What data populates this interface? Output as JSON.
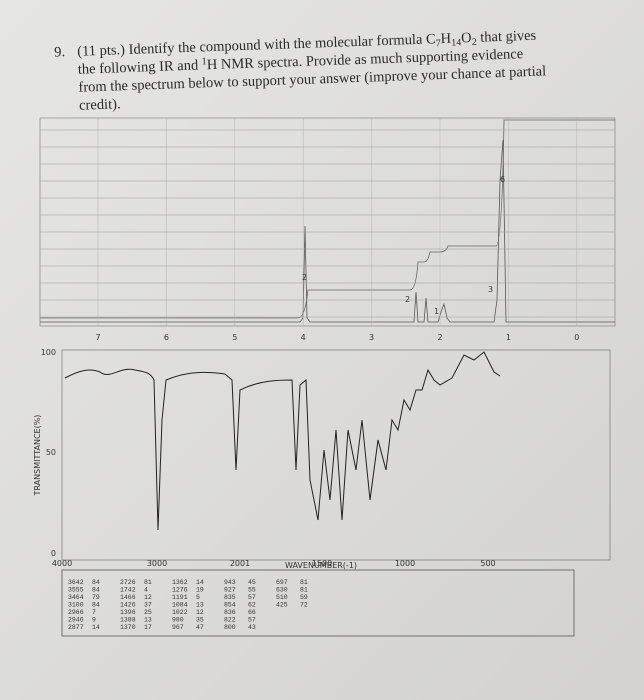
{
  "question": {
    "number": "9.",
    "parts": [
      "(11 pts.) Identify the compound with the molecular formula C",
      "7",
      "H",
      "14",
      "O",
      "2",
      " that gives",
      "the following IR and ",
      "1",
      "H NMR spectra.  Provide as much supporting evidence",
      "from the spectrum below to support your answer (improve your chance at partial",
      "credit)."
    ]
  },
  "nmr": {
    "axis_labels": [
      "7",
      "6",
      "5",
      "4",
      "3",
      "2",
      "1",
      "0"
    ],
    "integrations": [
      "2",
      "2",
      "1",
      "3",
      "6"
    ]
  },
  "ir": {
    "y_labels": [
      "100",
      "50",
      "0"
    ],
    "x_labels": [
      "4000",
      "3000",
      "2001",
      "1500",
      "1000",
      "500"
    ],
    "y_title": "TRANSMITTANCE(%)",
    "x_title": "WAVENUMBER(-1)"
  },
  "peak_table": {
    "columns": [
      [
        [
          "3642",
          "84"
        ],
        [
          "3555",
          "84"
        ],
        [
          "3464",
          "79"
        ],
        [
          "3100",
          "84"
        ],
        [
          "2966",
          "7"
        ],
        [
          "2946",
          "9"
        ],
        [
          "2877",
          "14"
        ]
      ],
      [
        [
          "2726",
          "81"
        ],
        [
          "1742",
          "4"
        ],
        [
          "1466",
          "12"
        ],
        [
          "1426",
          "37"
        ],
        [
          "1396",
          "25"
        ],
        [
          "1388",
          "13"
        ],
        [
          "1370",
          "17"
        ]
      ],
      [
        [
          "1362",
          "14"
        ],
        [
          "1276",
          "19"
        ],
        [
          "1191",
          "5"
        ],
        [
          "1084",
          "13"
        ],
        [
          "1022",
          "12"
        ],
        [
          "980",
          "35"
        ],
        [
          "967",
          "47"
        ]
      ],
      [
        [
          "943",
          "45"
        ],
        [
          "927",
          "55"
        ],
        [
          "835",
          "57"
        ],
        [
          "854",
          "62"
        ],
        [
          "836",
          "66"
        ],
        [
          "822",
          "57"
        ],
        [
          "800",
          "43"
        ]
      ],
      [
        [
          "697",
          "81"
        ],
        [
          "630",
          "81"
        ],
        [
          "510",
          "59"
        ],
        [
          "425",
          "72"
        ]
      ]
    ]
  }
}
